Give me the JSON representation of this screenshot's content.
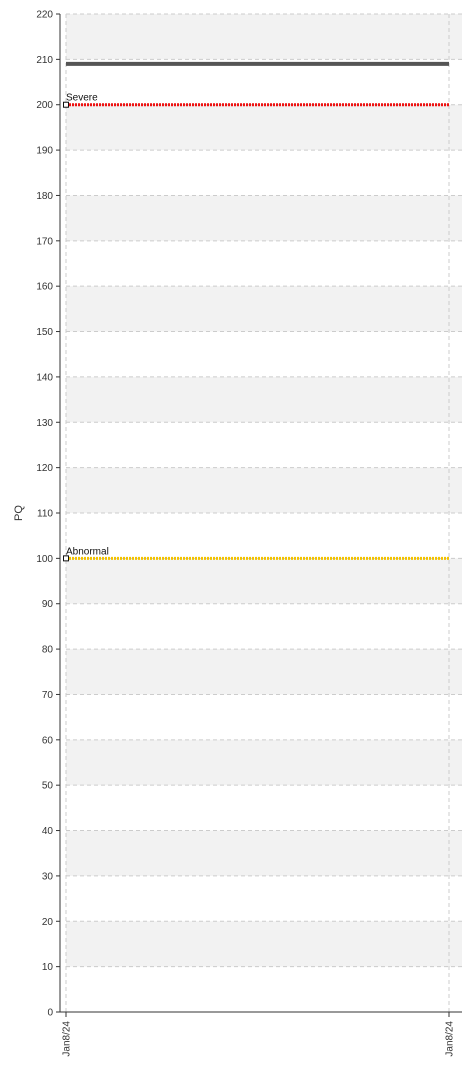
{
  "chart_data": {
    "type": "line",
    "ylabel": "PQ",
    "xlabel": "",
    "ylim": [
      0,
      220
    ],
    "yticks": [
      0,
      10,
      20,
      30,
      40,
      50,
      60,
      70,
      80,
      90,
      100,
      110,
      120,
      130,
      140,
      150,
      160,
      170,
      180,
      190,
      200,
      210,
      220
    ],
    "x_categories": [
      "Jan8/24",
      "Jan8/24"
    ],
    "grid": true,
    "alternating_bands": true,
    "series": [
      {
        "values": [
          209,
          209
        ],
        "color": "#555555"
      }
    ],
    "reference_lines": [
      {
        "label": "Severe",
        "value": 200,
        "color": "#ee1111"
      },
      {
        "label": "Abnormal",
        "value": 100,
        "color": "#f2c200"
      }
    ],
    "colors": {
      "band": "#f2f2f2",
      "grid": "#cccccc",
      "axis": "#333333"
    }
  }
}
